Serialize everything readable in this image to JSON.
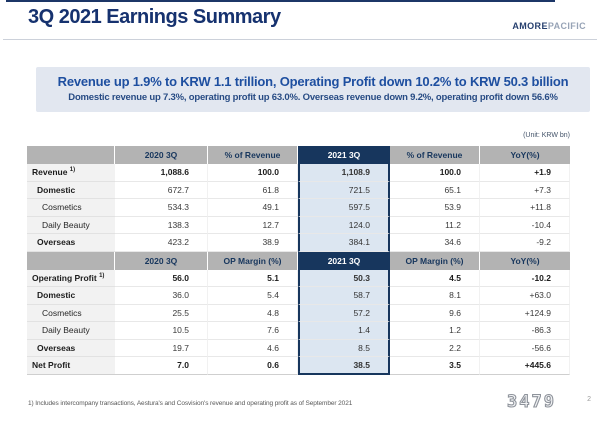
{
  "header": {
    "title": "3Q 2021 Earnings Summary",
    "logo_amore": "AMORE",
    "logo_pacific": "PACIFIC"
  },
  "banner": {
    "headline": "Revenue up 1.9% to KRW 1.1 trillion, Operating Profit down 10.2% to KRW 50.3 billion",
    "subline": "Domestic revenue up 7.3%, operating profit up 63.0%. Overseas revenue down 9.2%, operating profit down 56.6%"
  },
  "table": {
    "unit_note": "(Unit: KRW bn)",
    "highlight_col": 3,
    "sections": [
      {
        "header": [
          "",
          "2020 3Q",
          "% of Revenue",
          "2021 3Q",
          "% of Revenue",
          "YoY(%)"
        ],
        "rows": [
          {
            "label": "Revenue",
            "sup": "1)",
            "indent": 0,
            "bold": true,
            "labelBold": true,
            "values": [
              "1,088.6",
              "100.0",
              "1,108.9",
              "100.0",
              "+1.9"
            ]
          },
          {
            "label": "Domestic",
            "indent": 1,
            "bold": false,
            "labelBold": true,
            "values": [
              "672.7",
              "61.8",
              "721.5",
              "65.1",
              "+7.3"
            ]
          },
          {
            "label": "Cosmetics",
            "indent": 2,
            "bold": false,
            "labelBold": false,
            "values": [
              "534.3",
              "49.1",
              "597.5",
              "53.9",
              "+11.8"
            ]
          },
          {
            "label": "Daily Beauty",
            "indent": 2,
            "bold": false,
            "labelBold": false,
            "values": [
              "138.3",
              "12.7",
              "124.0",
              "11.2",
              "-10.4"
            ]
          },
          {
            "label": "Overseas",
            "indent": 1,
            "bold": false,
            "labelBold": true,
            "values": [
              "423.2",
              "38.9",
              "384.1",
              "34.6",
              "-9.2"
            ]
          }
        ]
      },
      {
        "header": [
          "",
          "2020 3Q",
          "OP Margin (%)",
          "2021 3Q",
          "OP Margin (%)",
          "YoY(%)"
        ],
        "rows": [
          {
            "label": "Operating Profit",
            "sup": "1)",
            "indent": 0,
            "bold": true,
            "labelBold": true,
            "values": [
              "56.0",
              "5.1",
              "50.3",
              "4.5",
              "-10.2"
            ]
          },
          {
            "label": "Domestic",
            "indent": 1,
            "bold": false,
            "labelBold": true,
            "values": [
              "36.0",
              "5.4",
              "58.7",
              "8.1",
              "+63.0"
            ]
          },
          {
            "label": "Cosmetics",
            "indent": 2,
            "bold": false,
            "labelBold": false,
            "values": [
              "25.5",
              "4.8",
              "57.2",
              "9.6",
              "+124.9"
            ]
          },
          {
            "label": "Daily Beauty",
            "indent": 2,
            "bold": false,
            "labelBold": false,
            "values": [
              "10.5",
              "7.6",
              "1.4",
              "1.2",
              "-86.3"
            ]
          },
          {
            "label": "Overseas",
            "indent": 1,
            "bold": false,
            "labelBold": true,
            "values": [
              "19.7",
              "4.6",
              "8.5",
              "2.2",
              "-56.6"
            ]
          },
          {
            "label": "Net Profit",
            "indent": 0,
            "bold": true,
            "labelBold": true,
            "values": [
              "7.0",
              "0.6",
              "38.5",
              "3.5",
              "+445.6"
            ]
          }
        ]
      }
    ]
  },
  "footnote": "1) Includes intercompany transactions, Aestura's and Cosvision's revenue and operating profit as of September 2021",
  "watermark": "3479",
  "page_number": "2",
  "colors": {
    "accent_navy": "#17365d",
    "title_navy": "#16326f",
    "banner_bg": "#e2e7f0",
    "banner_text": "#1e4fa0",
    "header_gray": "#b3b3b3",
    "highlight_blue": "#dce6f1"
  }
}
